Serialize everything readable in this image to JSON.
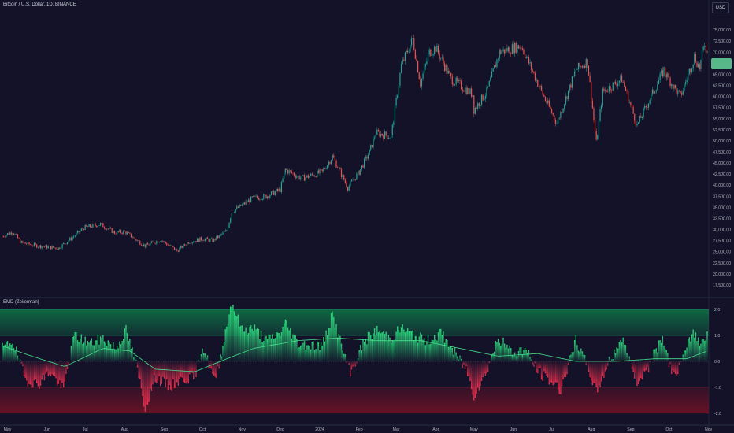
{
  "header": {
    "symbol_title": "Bitcoin / U.S. Dollar, 1D, BINANCE",
    "currency_label": "USD"
  },
  "indicator": {
    "title": "EMD (Zeiierman)"
  },
  "colors": {
    "background": "#131229",
    "up": "#26a69a",
    "down": "#ef5350",
    "osc_positive": "#2bd67b",
    "osc_negative": "#e8304f",
    "signal_line": "#46e08c",
    "zone_top": "#0f6b45",
    "zone_bottom": "#6b1226",
    "price_badge": "#58b88a"
  },
  "chart_data": [
    {
      "type": "candlestick",
      "title": "Bitcoin / U.S. Dollar, 1D, BINANCE",
      "y_axis_labels": [
        "75,000.00",
        "72,500.00",
        "70,000.00",
        "67,500.00",
        "65,000.00",
        "62,500.00",
        "60,000.00",
        "57,500.00",
        "55,000.00",
        "52,500.00",
        "50,000.00",
        "47,500.00",
        "45,000.00",
        "42,500.00",
        "40,000.00",
        "37,500.00",
        "35,000.00",
        "32,500.00",
        "30,000.00",
        "27,500.00",
        "25,000.00",
        "22,500.00",
        "20,000.00",
        "17,500.00"
      ],
      "x_axis_labels": [
        "May",
        "Jun",
        "Jul",
        "Aug",
        "Sep",
        "Oct",
        "Nov",
        "Dec",
        "2024",
        "Feb",
        "Mar",
        "Apr",
        "May",
        "Jun",
        "Jul",
        "Aug",
        "Sep",
        "Oct",
        "Nov"
      ],
      "ylim": [
        15000,
        80000
      ],
      "price_anchors": [
        [
          "2023-04-27",
          28500
        ],
        [
          "2023-05-05",
          29500
        ],
        [
          "2023-05-12",
          27000
        ],
        [
          "2023-05-25",
          26300
        ],
        [
          "2023-06-10",
          25800
        ],
        [
          "2023-06-20",
          28000
        ],
        [
          "2023-06-30",
          30400
        ],
        [
          "2023-07-13",
          31200
        ],
        [
          "2023-07-24",
          29300
        ],
        [
          "2023-08-01",
          29500
        ],
        [
          "2023-08-17",
          26300
        ],
        [
          "2023-08-29",
          27700
        ],
        [
          "2023-09-11",
          25200
        ],
        [
          "2023-09-20",
          27200
        ],
        [
          "2023-10-01",
          27900
        ],
        [
          "2023-10-09",
          27500
        ],
        [
          "2023-10-20",
          29700
        ],
        [
          "2023-10-24",
          34000
        ],
        [
          "2023-11-09",
          37000
        ],
        [
          "2023-11-20",
          37500
        ],
        [
          "2023-12-01",
          39000
        ],
        [
          "2023-12-05",
          43500
        ],
        [
          "2023-12-18",
          41500
        ],
        [
          "2024-01-03",
          43000
        ],
        [
          "2024-01-11",
          46500
        ],
        [
          "2024-01-23",
          39500
        ],
        [
          "2024-02-01",
          43000
        ],
        [
          "2024-02-09",
          47500
        ],
        [
          "2024-02-14",
          51800
        ],
        [
          "2024-02-26",
          51000
        ],
        [
          "2024-03-05",
          67000
        ],
        [
          "2024-03-14",
          73000
        ],
        [
          "2024-03-20",
          63000
        ],
        [
          "2024-03-27",
          70000
        ],
        [
          "2024-04-01",
          71000
        ],
        [
          "2024-04-13",
          64000
        ],
        [
          "2024-04-30",
          60500
        ],
        [
          "2024-05-01",
          57000
        ],
        [
          "2024-05-11",
          61000
        ],
        [
          "2024-05-21",
          70000
        ],
        [
          "2024-06-07",
          71500
        ],
        [
          "2024-06-24",
          60500
        ],
        [
          "2024-07-05",
          54000
        ],
        [
          "2024-07-20",
          66000
        ],
        [
          "2024-07-29",
          68000
        ],
        [
          "2024-08-05",
          49500
        ],
        [
          "2024-08-10",
          61000
        ],
        [
          "2024-08-25",
          64000
        ],
        [
          "2024-09-06",
          53500
        ],
        [
          "2024-09-27",
          66000
        ],
        [
          "2024-10-05",
          62000
        ],
        [
          "2024-10-10",
          60000
        ],
        [
          "2024-10-21",
          69000
        ],
        [
          "2024-10-25",
          66500
        ],
        [
          "2024-10-29",
          72000
        ],
        [
          "2024-10-31",
          70000
        ]
      ]
    },
    {
      "type": "area",
      "title": "EMD (Zeiierman)",
      "y_axis_labels": [
        "2.0",
        "1.0",
        "0.0",
        "-1.0",
        "-2.0"
      ],
      "ylim": [
        -2.4,
        2.4
      ],
      "bands": [
        {
          "from": 1.0,
          "to": 2.0
        },
        {
          "from": -1.0,
          "to": -2.0
        }
      ],
      "oscillator_anchors": [
        [
          "2023-04-27",
          0.5
        ],
        [
          "2023-05-05",
          0.8
        ],
        [
          "2023-05-15",
          -0.7
        ],
        [
          "2023-05-25",
          -0.9
        ],
        [
          "2023-06-03",
          -0.4
        ],
        [
          "2023-06-14",
          -1.1
        ],
        [
          "2023-06-22",
          1.0
        ],
        [
          "2023-07-05",
          0.7
        ],
        [
          "2023-07-15",
          0.9
        ],
        [
          "2023-07-25",
          0.5
        ],
        [
          "2023-08-02",
          1.2
        ],
        [
          "2023-08-10",
          -0.1
        ],
        [
          "2023-08-17",
          -1.8
        ],
        [
          "2023-08-25",
          -0.6
        ],
        [
          "2023-09-05",
          -1.0
        ],
        [
          "2023-09-15",
          -0.7
        ],
        [
          "2023-09-25",
          -0.6
        ],
        [
          "2023-10-01",
          0.6
        ],
        [
          "2023-10-11",
          -0.8
        ],
        [
          "2023-10-18",
          0.9
        ],
        [
          "2023-10-24",
          2.3
        ],
        [
          "2023-11-01",
          1.2
        ],
        [
          "2023-11-10",
          1.3
        ],
        [
          "2023-11-20",
          0.8
        ],
        [
          "2023-12-01",
          1.1
        ],
        [
          "2023-12-05",
          1.5
        ],
        [
          "2023-12-15",
          0.7
        ],
        [
          "2024-01-03",
          0.6
        ],
        [
          "2024-01-11",
          1.8
        ],
        [
          "2024-01-20",
          0.3
        ],
        [
          "2024-01-25",
          -0.5
        ],
        [
          "2024-02-05",
          0.8
        ],
        [
          "2024-02-15",
          1.2
        ],
        [
          "2024-02-26",
          0.9
        ],
        [
          "2024-03-05",
          1.3
        ],
        [
          "2024-03-15",
          1.0
        ],
        [
          "2024-03-25",
          0.8
        ],
        [
          "2024-04-05",
          1.1
        ],
        [
          "2024-04-15",
          0.4
        ],
        [
          "2024-04-25",
          -0.3
        ],
        [
          "2024-05-01",
          -1.3
        ],
        [
          "2024-05-10",
          -0.5
        ],
        [
          "2024-05-20",
          0.9
        ],
        [
          "2024-06-01",
          0.3
        ],
        [
          "2024-06-10",
          0.5
        ],
        [
          "2024-06-20",
          -0.4
        ],
        [
          "2024-07-01",
          -0.8
        ],
        [
          "2024-07-08",
          -1.1
        ],
        [
          "2024-07-20",
          0.8
        ],
        [
          "2024-07-30",
          -0.3
        ],
        [
          "2024-08-05",
          -1.2
        ],
        [
          "2024-08-15",
          0.0
        ],
        [
          "2024-08-25",
          0.9
        ],
        [
          "2024-09-06",
          -0.8
        ],
        [
          "2024-09-15",
          -0.2
        ],
        [
          "2024-09-25",
          0.9
        ],
        [
          "2024-10-05",
          -0.6
        ],
        [
          "2024-10-12",
          0.1
        ],
        [
          "2024-10-20",
          1.2
        ],
        [
          "2024-10-25",
          0.7
        ],
        [
          "2024-10-31",
          1.1
        ]
      ],
      "signal_anchors": [
        [
          "2023-04-27",
          0.6
        ],
        [
          "2023-05-20",
          0.2
        ],
        [
          "2023-06-15",
          -0.2
        ],
        [
          "2023-07-15",
          0.5
        ],
        [
          "2023-08-05",
          0.4
        ],
        [
          "2023-08-25",
          -0.3
        ],
        [
          "2023-09-25",
          -0.4
        ],
        [
          "2023-10-15",
          0.0
        ],
        [
          "2023-11-10",
          0.5
        ],
        [
          "2023-12-15",
          0.8
        ],
        [
          "2024-01-15",
          0.9
        ],
        [
          "2024-02-15",
          0.8
        ],
        [
          "2024-03-20",
          0.8
        ],
        [
          "2024-04-20",
          0.5
        ],
        [
          "2024-05-20",
          0.2
        ],
        [
          "2024-06-20",
          0.3
        ],
        [
          "2024-07-20",
          0.0
        ],
        [
          "2024-08-20",
          0.0
        ],
        [
          "2024-09-20",
          0.1
        ],
        [
          "2024-10-15",
          0.1
        ],
        [
          "2024-10-31",
          0.4
        ]
      ]
    }
  ]
}
